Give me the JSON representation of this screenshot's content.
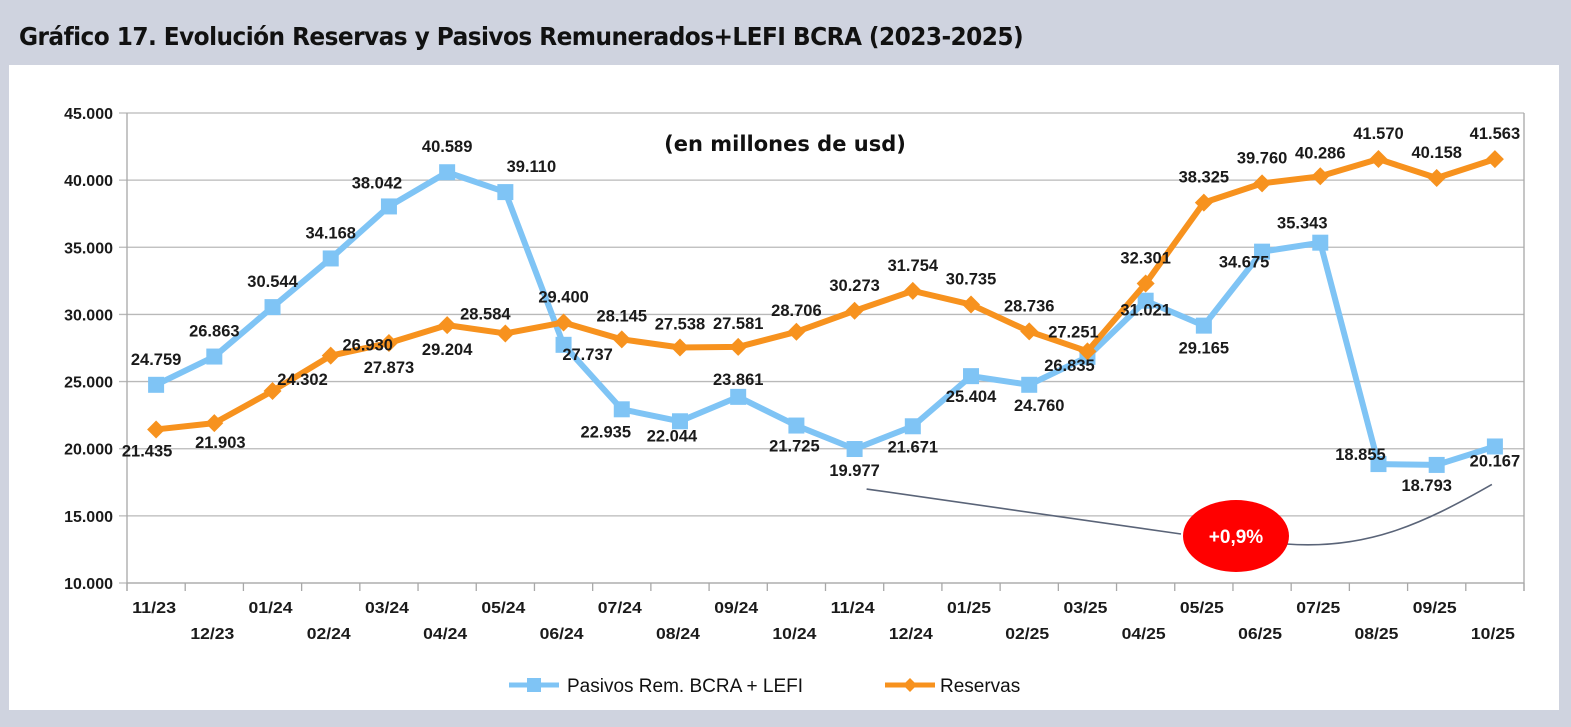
{
  "page_title": "Gráfico 17. Evolución Reservas y Pasivos Remunerados+LEFI BCRA (2023-2025)",
  "chart_data": {
    "type": "line",
    "title": "Gráfico 17. Evolución Reservas y Pasivos Remunerados+LEFI BCRA (2023-2025)",
    "subtitle": "(en millones de usd)",
    "xlabel": "",
    "ylabel": "",
    "ylim": [
      10000,
      45000
    ],
    "yticks": [
      10000,
      15000,
      20000,
      25000,
      30000,
      35000,
      40000,
      45000
    ],
    "ytick_labels": [
      "10.000",
      "15.000",
      "20.000",
      "25.000",
      "30.000",
      "35.000",
      "40.000",
      "45.000"
    ],
    "grid": true,
    "legend_position": "bottom",
    "categories": [
      "11/23",
      "12/23",
      "01/24",
      "02/24",
      "03/24",
      "04/24",
      "05/24",
      "06/24",
      "07/24",
      "08/24",
      "09/24",
      "10/24",
      "11/24",
      "12/24",
      "01/25",
      "02/25",
      "03/25",
      "04/25",
      "05/25",
      "06/25",
      "07/25",
      "08/25",
      "09/25",
      "10/25"
    ],
    "series": [
      {
        "name": "Pasivos Rem. BCRA + LEFI",
        "color": "#7fc4f5",
        "marker": "square",
        "values": [
          24759,
          26863,
          30544,
          34168,
          38042,
          40589,
          39110,
          27737,
          22935,
          22044,
          23861,
          21725,
          19977,
          21671,
          25404,
          24760,
          26835,
          31021,
          29165,
          34675,
          35343,
          18855,
          18793,
          20167
        ],
        "labels": [
          "24.759",
          "26.863",
          "30.544",
          "34.168",
          "38.042",
          "40.589",
          "39.110",
          "27.737",
          "22.935",
          "22.044",
          "23.861",
          "21.725",
          "19.977",
          "21.671",
          "25.404",
          "24.760",
          "26.835",
          "31.021",
          "29.165",
          "34.675",
          "35.343",
          "18.855",
          "18.793",
          "20.167"
        ]
      },
      {
        "name": "Reservas",
        "color": "#f7921e",
        "marker": "diamond",
        "values": [
          21435,
          21903,
          24302,
          26930,
          27873,
          29204,
          28584,
          29400,
          28145,
          27538,
          27581,
          28706,
          30273,
          31754,
          30735,
          28736,
          27251,
          32301,
          38325,
          39760,
          40286,
          41570,
          40158,
          41563
        ],
        "labels": [
          "21.435",
          "21.903",
          "24.302",
          "26.930",
          "27.873",
          "29.204",
          "28.584",
          "29.400",
          "28.145",
          "27.538",
          "27.581",
          "28.706",
          "30.273",
          "31.754",
          "30.735",
          "28.736",
          "27.251",
          "32.301",
          "38.325",
          "39.760",
          "40.286",
          "41.570",
          "40.158",
          "41.563"
        ]
      }
    ],
    "annotations": [
      {
        "type": "badge",
        "text": "+0,9%",
        "color": "#ff0000",
        "connects": {
          "series": "Pasivos Rem. BCRA + LEFI",
          "from": "11/24",
          "to": "10/25"
        }
      }
    ]
  }
}
